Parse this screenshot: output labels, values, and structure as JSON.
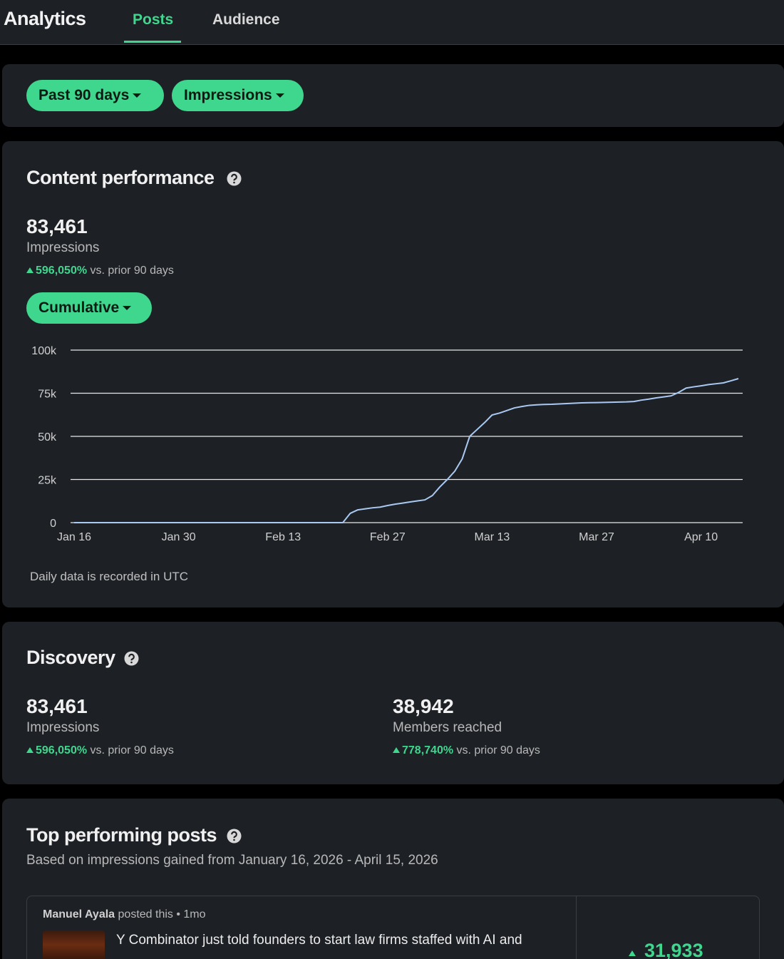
{
  "nav": {
    "title": "Analytics",
    "tabs": [
      "Posts",
      "Audience"
    ]
  },
  "filters": [
    "Past 90 days",
    "Impressions"
  ],
  "content_performance": {
    "title": "Content performance",
    "metric": {
      "value": "83,461",
      "label": "Impressions",
      "change": "596,050%",
      "comparison": "vs. prior 90 days"
    },
    "view": "Cumulative",
    "note": "Daily data is recorded in UTC"
  },
  "chart_data": {
    "type": "line",
    "color": "#a9c9f2",
    "grid": true,
    "categories": [
      "Jan 16",
      null,
      null,
      null,
      null,
      null,
      null,
      null,
      null,
      null,
      null,
      null,
      null,
      null,
      "Jan 30",
      null,
      null,
      null,
      null,
      null,
      null,
      null,
      null,
      null,
      null,
      null,
      null,
      null,
      "Feb 13",
      null,
      null,
      null,
      null,
      null,
      null,
      null,
      null,
      null,
      null,
      null,
      null,
      null,
      "Feb 27",
      null,
      null,
      null,
      null,
      null,
      null,
      null,
      null,
      null,
      null,
      null,
      null,
      null,
      "Mar 13",
      null,
      null,
      null,
      null,
      null,
      null,
      null,
      null,
      null,
      null,
      null,
      null,
      null,
      "Mar 27",
      null,
      null,
      null,
      null,
      null,
      null,
      null,
      null,
      null,
      null,
      null,
      null,
      null,
      "Apr 10",
      null,
      null,
      null,
      null,
      null
    ],
    "values": [
      0,
      0,
      0,
      0,
      0,
      0,
      0,
      0,
      0,
      0,
      0,
      0,
      0,
      0,
      0,
      0,
      0,
      0,
      0,
      0,
      0,
      0,
      0,
      0,
      0,
      0,
      0,
      0,
      0,
      0,
      0,
      0,
      0,
      0,
      0,
      0,
      0,
      5400,
      7400,
      8000,
      8600,
      9000,
      9900,
      10700,
      11300,
      12000,
      12600,
      13200,
      15700,
      20700,
      25000,
      29800,
      37000,
      50000,
      54000,
      58000,
      62400,
      63500,
      65000,
      66500,
      67300,
      68000,
      68300,
      68500,
      68600,
      68800,
      69000,
      69200,
      69400,
      69500,
      69600,
      69700,
      69800,
      69900,
      70000,
      70200,
      71000,
      71600,
      72300,
      72900,
      73500,
      75500,
      78000,
      78700,
      79300,
      80000,
      80500,
      81000,
      82200,
      83461
    ],
    "ylim": [
      0,
      100000
    ],
    "yticks": [
      0,
      {
        "value": 25000,
        "label": "25k"
      },
      {
        "value": 50000,
        "label": "50k"
      },
      {
        "value": 75000,
        "label": "75k"
      },
      {
        "value": 100000,
        "label": "100k"
      }
    ]
  },
  "discovery": {
    "title": "Discovery",
    "metrics": [
      {
        "value": "83,461",
        "label": "Impressions",
        "change": "596,050%",
        "comparison": "vs. prior 90 days"
      },
      {
        "value": "38,942",
        "label": "Members reached",
        "change": "778,740%",
        "comparison": "vs. prior 90 days"
      }
    ]
  },
  "top_posts": {
    "title": "Top performing posts",
    "subtitle": "Based on impressions gained from January 16, 2026 - April 15, 2026",
    "posts": [
      {
        "author": "Manuel Ayala",
        "meta": "posted this • 1mo",
        "text": "Y Combinator just told founders to start law firms staffed with AI and",
        "impressions": "31,933"
      }
    ]
  }
}
